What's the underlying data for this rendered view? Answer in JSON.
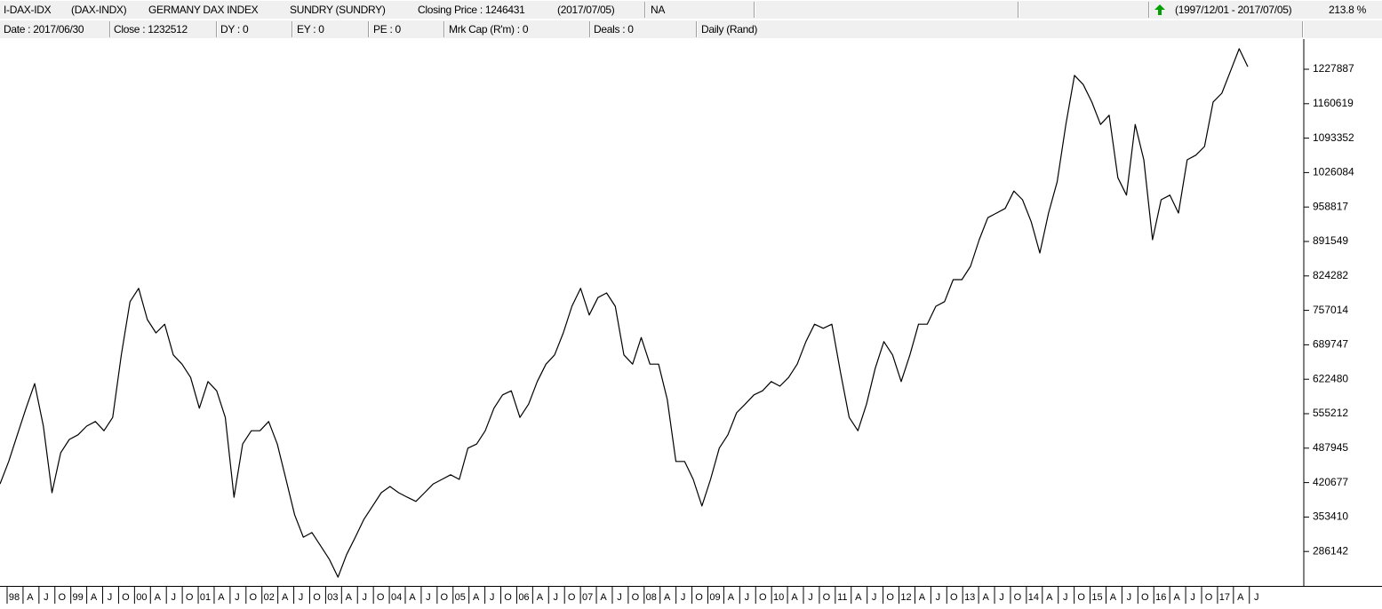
{
  "header": {
    "row1": [
      "I-DAX-IDX",
      "(DAX-INDX)",
      "GERMANY DAX INDEX",
      "SUNDRY (SUNDRY)",
      "Closing Price : 1246431",
      "(2017/07/05)",
      "NA",
      "(1997/12/01 - 2017/07/05)",
      "213.8 %"
    ],
    "row2": [
      "Date : 2017/06/30",
      "Close : 1232512",
      "DY : 0",
      "EY : 0",
      "PE : 0",
      "Mrk Cap (R'm) : 0",
      "Deals : 0",
      "Daily (Rand)"
    ]
  },
  "chart_data": {
    "type": "line",
    "color": "#000000",
    "values": [
      418000,
      462000,
      514000,
      566000,
      614000,
      531000,
      401000,
      479000,
      505000,
      514000,
      531000,
      540000,
      522000,
      548000,
      670000,
      774000,
      800000,
      739000,
      713000,
      730000,
      670000,
      652000,
      626000,
      566000,
      618000,
      600000,
      548000,
      392000,
      496000,
      522000,
      522000,
      540000,
      496000,
      427000,
      358000,
      314000,
      323000,
      297000,
      271000,
      236000,
      280000,
      314000,
      349000,
      375000,
      401000,
      413000,
      401000,
      392000,
      384000,
      401000,
      418000,
      427000,
      436000,
      427000,
      488000,
      496000,
      522000,
      566000,
      592000,
      600000,
      548000,
      574000,
      618000,
      652000,
      670000,
      713000,
      765000,
      800000,
      748000,
      782000,
      791000,
      765000,
      670000,
      652000,
      704000,
      652000,
      652000,
      583000,
      462000,
      462000,
      427000,
      375000,
      427000,
      488000,
      514000,
      557000,
      574000,
      592000,
      600000,
      618000,
      609000,
      626000,
      652000,
      696000,
      730000,
      722000,
      730000,
      635000,
      548000,
      522000,
      574000,
      644000,
      696000,
      670000,
      618000,
      670000,
      730000,
      730000,
      765000,
      774000,
      817000,
      817000,
      843000,
      895000,
      938000,
      947000,
      956000,
      990000,
      973000,
      930000,
      869000,
      947000,
      1008000,
      1120000,
      1216000,
      1198000,
      1164000,
      1120000,
      1138000,
      1016000,
      982000,
      1120000,
      1051000,
      895000,
      973000,
      982000,
      947000,
      1051000,
      1060000,
      1077000,
      1164000,
      1181000,
      1224000,
      1268000,
      1233000
    ],
    "ylim": [
      218880,
      1290300
    ],
    "yticks": [
      1227887,
      1160619,
      1093352,
      1026084,
      958817,
      891549,
      824282,
      757014,
      689747,
      622480,
      555212,
      487945,
      420677,
      353410,
      286142
    ],
    "x_tick_labels": [
      "98",
      "A",
      "J",
      "O",
      "99",
      "A",
      "J",
      "O",
      "00",
      "A",
      "J",
      "O",
      "01",
      "A",
      "J",
      "O",
      "02",
      "A",
      "J",
      "O",
      "03",
      "A",
      "J",
      "O",
      "04",
      "A",
      "J",
      "O",
      "05",
      "A",
      "J",
      "O",
      "06",
      "A",
      "J",
      "O",
      "07",
      "A",
      "J",
      "O",
      "08",
      "A",
      "J",
      "O",
      "09",
      "A",
      "J",
      "O",
      "10",
      "A",
      "J",
      "O",
      "11",
      "A",
      "J",
      "O",
      "12",
      "A",
      "J",
      "O",
      "13",
      "A",
      "J",
      "O",
      "14",
      "A",
      "J",
      "O",
      "15",
      "A",
      "J",
      "O",
      "16",
      "A",
      "J",
      "O",
      "17",
      "A",
      "J"
    ]
  }
}
